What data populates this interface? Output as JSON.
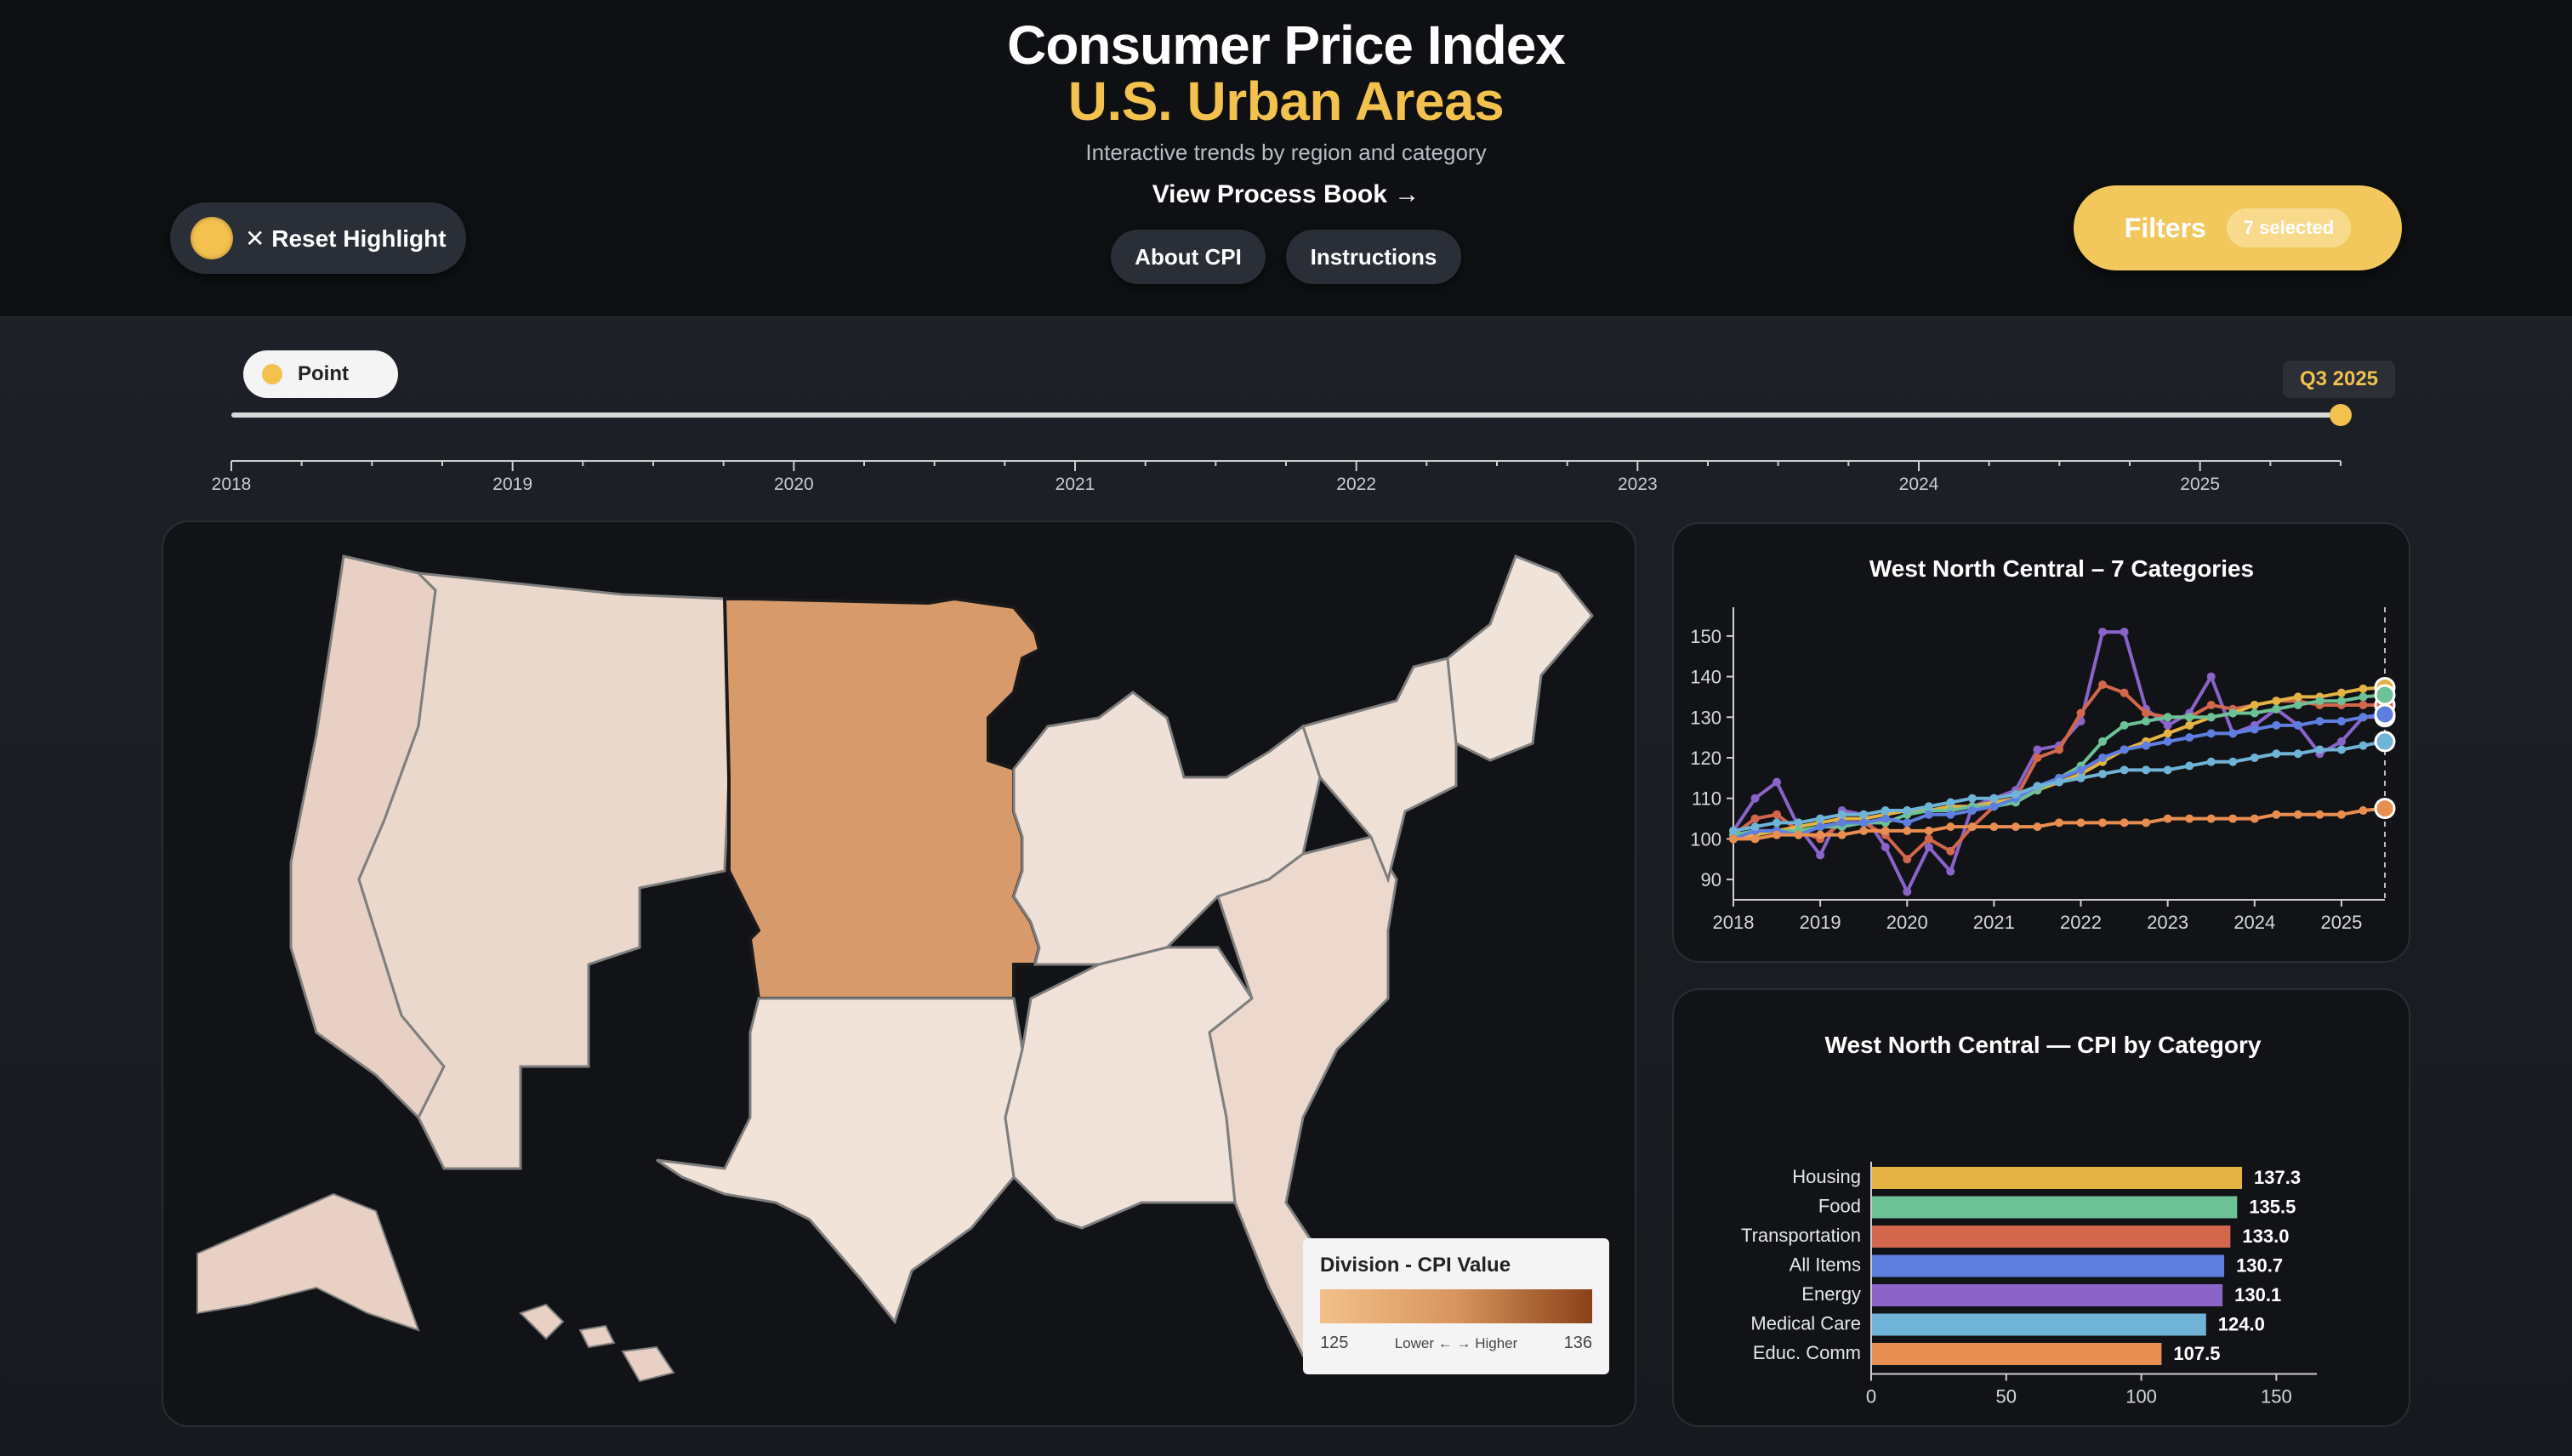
{
  "header": {
    "title": "Consumer Price Index",
    "subtitle_area": "U.S. Urban Areas",
    "tagline": "Interactive trends by region and category",
    "process_link": "View Process Book →",
    "about_button": "About CPI",
    "instructions_button": "Instructions",
    "reset_label": "✕ Reset Highlight",
    "filters_label": "Filters",
    "filters_badge": "7 selected"
  },
  "timeline": {
    "mode_label": "Point",
    "current_label": "Q3 2025",
    "years": [
      "2018",
      "2019",
      "2020",
      "2021",
      "2022",
      "2023",
      "2024",
      "2025"
    ]
  },
  "map": {
    "legend_title": "Division - CPI Value",
    "legend_min": "125",
    "legend_mid": "Lower ← → Higher",
    "legend_max": "136",
    "highlighted_division": "West North Central"
  },
  "colors": {
    "accent": "#f2c14e",
    "housing": "#e5b343",
    "food": "#6cc196",
    "transportation": "#d2674c",
    "all_items": "#5f7fe0",
    "energy": "#8a64c9",
    "medical": "#6fb3d6",
    "educ": "#e88e50"
  },
  "chart_data": [
    {
      "type": "line",
      "title": "West North Central – 7 Categories",
      "x": [
        2018,
        2018.25,
        2018.5,
        2018.75,
        2019,
        2019.25,
        2019.5,
        2019.75,
        2020,
        2020.25,
        2020.5,
        2020.75,
        2021,
        2021.25,
        2021.5,
        2021.75,
        2022,
        2022.25,
        2022.5,
        2022.75,
        2023,
        2023.25,
        2023.5,
        2023.75,
        2024,
        2024.25,
        2024.5,
        2024.75,
        2025,
        2025.25,
        2025.5
      ],
      "x_ticks": [
        "2018",
        "2019",
        "2020",
        "2021",
        "2022",
        "2023",
        "2024",
        "2025"
      ],
      "y_ticks": [
        "90",
        "100",
        "110",
        "120",
        "130",
        "140",
        "150"
      ],
      "ylim": [
        85,
        155
      ],
      "series": [
        {
          "name": "Energy",
          "color": "#8a64c9",
          "values": [
            102,
            110,
            114,
            103,
            96,
            107,
            106,
            98,
            87,
            98,
            92,
            108,
            110,
            112,
            122,
            123,
            129,
            151,
            151,
            132,
            128,
            131,
            140,
            126,
            128,
            132,
            128,
            121,
            124,
            130,
            130.1
          ]
        },
        {
          "name": "Transportation",
          "color": "#d2674c",
          "values": [
            101,
            105,
            106,
            102,
            100,
            104,
            104,
            101,
            95,
            100,
            97,
            103,
            108,
            110,
            120,
            122,
            131,
            138,
            136,
            131,
            130,
            130,
            133,
            132,
            133,
            134,
            134,
            133,
            133,
            133,
            133
          ]
        },
        {
          "name": "Housing",
          "color": "#e5b343",
          "values": [
            100,
            101,
            102,
            103,
            104,
            105,
            105,
            106,
            107,
            107,
            108,
            108,
            109,
            110,
            112,
            114,
            116,
            119,
            122,
            124,
            126,
            128,
            130,
            131,
            133,
            134,
            135,
            135,
            136,
            137,
            137.3
          ]
        },
        {
          "name": "Food",
          "color": "#6cc196",
          "values": [
            101,
            102,
            102,
            102,
            103,
            103,
            104,
            104,
            106,
            107,
            107,
            108,
            108,
            109,
            112,
            115,
            118,
            124,
            128,
            129,
            130,
            130,
            130,
            131,
            131,
            132,
            133,
            134,
            134,
            135,
            135.5
          ]
        },
        {
          "name": "All Items",
          "color": "#5f7fe0",
          "values": [
            100,
            102,
            102,
            101,
            103,
            104,
            104,
            105,
            104,
            106,
            106,
            107,
            108,
            110,
            113,
            115,
            117,
            120,
            122,
            123,
            124,
            125,
            126,
            126,
            127,
            128,
            128,
            129,
            129,
            130,
            130.7
          ]
        },
        {
          "name": "Medical Care",
          "color": "#6fb3d6",
          "values": [
            102,
            103,
            104,
            104,
            105,
            106,
            106,
            107,
            107,
            108,
            109,
            110,
            110,
            111,
            113,
            114,
            115,
            116,
            117,
            117,
            117,
            118,
            119,
            119,
            120,
            121,
            121,
            122,
            122,
            123,
            124
          ]
        },
        {
          "name": "Educ. Comm",
          "color": "#e88e50",
          "values": [
            100,
            100,
            101,
            101,
            101,
            101,
            102,
            102,
            102,
            102,
            103,
            103,
            103,
            103,
            103,
            104,
            104,
            104,
            104,
            104,
            105,
            105,
            105,
            105,
            105,
            106,
            106,
            106,
            106,
            107,
            107.5
          ]
        }
      ]
    },
    {
      "type": "bar",
      "title": "West North Central — CPI by Category",
      "categories": [
        "Housing",
        "Food",
        "Transportation",
        "All Items",
        "Energy",
        "Medical Care",
        "Educ. Comm"
      ],
      "values": [
        137.3,
        135.5,
        133.0,
        130.7,
        130.1,
        124.0,
        107.5
      ],
      "labels": [
        "137.3",
        "135.5",
        "133.0",
        "130.7",
        "130.1",
        "124.0",
        "107.5"
      ],
      "colors": [
        "#e5b343",
        "#6cc196",
        "#d2674c",
        "#5f7fe0",
        "#8a64c9",
        "#6fb3d6",
        "#e88e50"
      ],
      "x_ticks": [
        "0",
        "50",
        "100",
        "150"
      ],
      "xlim": [
        0,
        165
      ]
    }
  ]
}
